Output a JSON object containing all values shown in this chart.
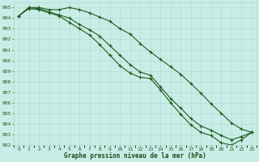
{
  "title": "Graphe pression niveau de la mer (hPa)",
  "xlabel_hours": [
    0,
    1,
    2,
    3,
    4,
    5,
    6,
    7,
    8,
    9,
    10,
    11,
    12,
    13,
    14,
    15,
    16,
    17,
    18,
    19,
    20,
    21,
    22,
    23
  ],
  "line1": [
    994.2,
    995.0,
    995.0,
    994.8,
    994.8,
    995.0,
    994.8,
    994.5,
    994.1,
    993.7,
    993.0,
    992.5,
    991.6,
    990.8,
    990.1,
    989.4,
    988.7,
    987.8,
    986.9,
    985.9,
    985.0,
    984.1,
    983.5,
    983.2
  ],
  "line2": [
    994.2,
    995.0,
    994.9,
    994.6,
    994.3,
    994.0,
    993.4,
    992.9,
    992.3,
    991.4,
    990.5,
    989.6,
    988.9,
    988.6,
    987.5,
    986.4,
    985.5,
    984.5,
    983.8,
    983.4,
    982.9,
    982.5,
    982.8,
    983.2
  ],
  "line3": [
    994.2,
    994.9,
    994.8,
    994.5,
    994.2,
    993.6,
    993.0,
    992.4,
    991.5,
    990.5,
    989.5,
    988.8,
    988.4,
    988.3,
    987.2,
    986.0,
    984.9,
    983.9,
    983.2,
    982.9,
    982.2,
    982.0,
    982.5,
    983.2
  ],
  "ylim": [
    982,
    995.5
  ],
  "yticks": [
    982,
    983,
    984,
    985,
    986,
    987,
    988,
    989,
    990,
    991,
    992,
    993,
    994,
    995
  ],
  "line_color": "#1e5c1e",
  "bg_color": "#c8ede6",
  "grid_color_major": "#b0d8d0",
  "grid_color_minor": "#c0e4dc",
  "title_color": "#1a4a1a",
  "tick_color": "#1e5c1e"
}
